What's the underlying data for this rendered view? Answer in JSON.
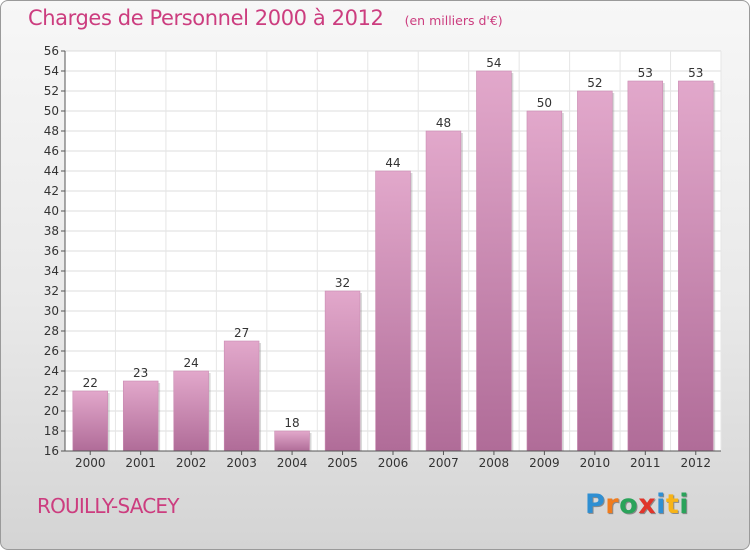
{
  "chart_data": {
    "type": "bar",
    "title": "Charges de Personnel 2000 à 2012",
    "subtitle": "(en milliers d'€)",
    "categories": [
      "2000",
      "2001",
      "2002",
      "2003",
      "2004",
      "2005",
      "2006",
      "2007",
      "2008",
      "2009",
      "2010",
      "2011",
      "2012"
    ],
    "values": [
      22,
      23,
      24,
      27,
      18,
      32,
      44,
      48,
      54,
      50,
      52,
      53,
      53
    ],
    "ylim": [
      16,
      56
    ],
    "yticks": [
      16,
      18,
      20,
      22,
      24,
      26,
      28,
      30,
      32,
      34,
      36,
      38,
      40,
      42,
      44,
      46,
      48,
      50,
      52,
      54,
      56
    ],
    "grid": true,
    "bar_color": "#d483b3"
  },
  "footer": {
    "commune": "ROUILLY-SACEY",
    "brand": "Proxiti",
    "brand_letters": [
      {
        "char": "P",
        "color": "#2f8fd2"
      },
      {
        "char": "r",
        "color": "#f07c1e"
      },
      {
        "char": "o",
        "color": "#2aa35a"
      },
      {
        "char": "x",
        "color": "#e0352b"
      },
      {
        "char": "i",
        "color": "#2f8fd2"
      },
      {
        "char": "t",
        "color": "#f7b418"
      },
      {
        "char": "i",
        "color": "#2aa35a"
      }
    ]
  }
}
